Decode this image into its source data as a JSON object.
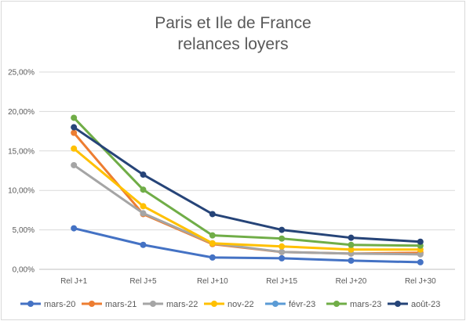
{
  "chart_data": {
    "type": "line",
    "title_lines": [
      "Paris et Ile de France",
      "relances loyers"
    ],
    "categories": [
      "Rel J+1",
      "Rel J+5",
      "Rel J+10",
      "Rel J+15",
      "Rel J+20",
      "Rel J+30"
    ],
    "ylim": [
      0,
      25
    ],
    "yticks": [
      "0,00%",
      "5,00%",
      "10,00%",
      "15,00%",
      "20,00%",
      "25,00%"
    ],
    "grid": true,
    "legend_position": "bottom",
    "series": [
      {
        "name": "mars-20",
        "color": "#4472C4",
        "values": [
          5.2,
          3.1,
          1.5,
          1.4,
          1.1,
          0.9
        ]
      },
      {
        "name": "mars-21",
        "color": "#ED7D31",
        "values": [
          17.3,
          7.0,
          3.2,
          2.2,
          2.0,
          2.1
        ]
      },
      {
        "name": "mars-22",
        "color": "#A5A5A5",
        "values": [
          13.2,
          7.1,
          3.3,
          2.2,
          2.0,
          1.9
        ]
      },
      {
        "name": "nov-22",
        "color": "#FFC000",
        "values": [
          15.3,
          8.0,
          3.3,
          2.9,
          2.5,
          2.5
        ]
      },
      {
        "name": "févr-23",
        "color": "#5B9BD5",
        "values": [
          null,
          null,
          null,
          null,
          null,
          null
        ]
      },
      {
        "name": "mars-23",
        "color": "#70AD47",
        "values": [
          19.2,
          10.1,
          4.3,
          3.9,
          3.1,
          3.0
        ]
      },
      {
        "name": "août-23",
        "color": "#264478",
        "values": [
          18.0,
          12.0,
          7.0,
          5.0,
          4.0,
          3.5
        ]
      }
    ]
  }
}
